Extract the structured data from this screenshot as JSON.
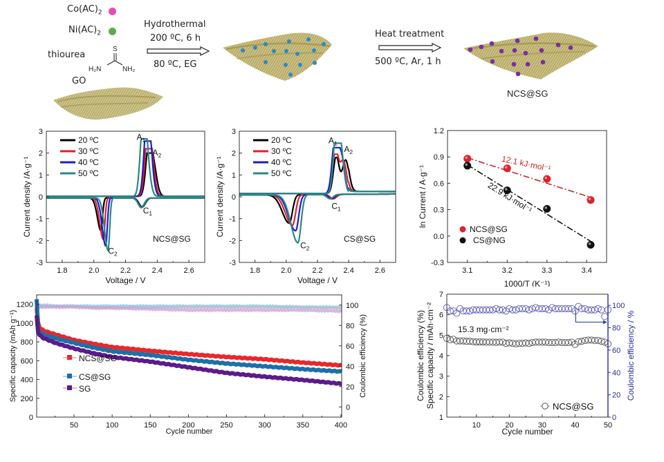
{
  "scheme": {
    "reagents": [
      {
        "label": "Co(AC)",
        "sub": "2",
        "dot_color": "#e84cb4"
      },
      {
        "label": "Ni(AC)",
        "sub": "2",
        "dot_color": "#5aae4a"
      }
    ],
    "thiourea_label": "thiourea",
    "thiourea_atoms": {
      "s": "S",
      "left": "H₂N",
      "right": "NH₂"
    },
    "go_label": "GO",
    "step1": {
      "above_1": "Hydrothermal",
      "above_2": "200 ºC, 6 h",
      "below": "80 ºC, EG"
    },
    "step2": {
      "above": "Heat treatment",
      "below": "500 ºC, Ar, 1 h"
    },
    "product_label": "NCS@SG",
    "sheet_color": "#a89a4a",
    "intermediate_dot_color": "#2e88c6",
    "product_dot_color": "#7a2fa3"
  },
  "chart_data": [
    {
      "id": "cv-ncs",
      "type": "line",
      "title": "",
      "annotation": "NCS@SG",
      "xlabel": "Voltage / V",
      "ylabel": "Current density /A·g⁻¹",
      "xlim": [
        1.7,
        2.7
      ],
      "ylim": [
        -3,
        3
      ],
      "xticks": [
        "1.8",
        "2.0",
        "2.2",
        "2.4",
        "2.6"
      ],
      "xtick_values": [
        1.8,
        2.0,
        2.2,
        2.4,
        2.6
      ],
      "yticks": [
        "-3",
        "-2",
        "-1",
        "0",
        "1",
        "2",
        "3"
      ],
      "ytick_values": [
        -3,
        -2,
        -1,
        0,
        1,
        2,
        3
      ],
      "peak_labels": [
        {
          "text": "A",
          "sub": "1",
          "x": 2.27,
          "y": 2.6
        },
        {
          "text": "A",
          "sub": "2",
          "x": 2.37,
          "y": 1.9
        },
        {
          "text": "C",
          "sub": "1",
          "x": 2.31,
          "y": -0.75
        },
        {
          "text": "C",
          "sub": "2",
          "x": 2.09,
          "y": -2.6
        }
      ],
      "series": [
        {
          "name": "20 ºC",
          "color": "#000000",
          "c2": [
            2.045,
            -1.5
          ],
          "c1": [
            2.305,
            -0.42
          ],
          "a1": [
            2.345,
            2.0
          ],
          "a2": [
            2.375,
            1.65
          ]
        },
        {
          "name": "30 ºC",
          "color": "#e0202a",
          "c2": [
            2.06,
            -1.9
          ],
          "c1": [
            2.3,
            -0.42
          ],
          "a1": [
            2.34,
            2.2
          ],
          "a2": [
            2.36,
            2.0
          ]
        },
        {
          "name": "40 ºC",
          "color": "#1a1ad0",
          "c2": [
            2.075,
            -2.2
          ],
          "c1": [
            2.3,
            -0.42
          ],
          "a1": [
            2.335,
            2.55
          ],
          "a2": [
            2.35,
            2.2
          ]
        },
        {
          "name": "50 ºC",
          "color": "#2a8a82",
          "c2": [
            2.09,
            -2.4
          ],
          "c1": [
            2.3,
            -0.45
          ],
          "a1": [
            2.31,
            2.65
          ],
          "a2": [
            2.33,
            2.2
          ]
        }
      ]
    },
    {
      "id": "cv-cs",
      "type": "line",
      "title": "",
      "annotation": "CS@SG",
      "xlabel": "Voltage / V",
      "ylabel": "Current density /A·g⁻¹",
      "xlim": [
        1.7,
        2.7
      ],
      "ylim": [
        -3,
        3
      ],
      "xticks": [
        "1.8",
        "2.0",
        "2.2",
        "2.4",
        "2.6"
      ],
      "xtick_values": [
        1.8,
        2.0,
        2.2,
        2.4,
        2.6
      ],
      "yticks": [
        "-3",
        "-2",
        "-1",
        "0",
        "1",
        "2",
        "3"
      ],
      "ytick_values": [
        -3,
        -2,
        -1,
        0,
        1,
        2,
        3
      ],
      "peak_labels": [
        {
          "text": "A",
          "sub": "1",
          "x": 2.27,
          "y": 2.45
        },
        {
          "text": "A",
          "sub": "2",
          "x": 2.37,
          "y": 2.05
        },
        {
          "text": "C",
          "sub": "1",
          "x": 2.29,
          "y": -0.55
        },
        {
          "text": "C",
          "sub": "2",
          "x": 2.09,
          "y": -2.35
        }
      ],
      "series": [
        {
          "name": "20 ºC",
          "color": "#000000",
          "c2": [
            2.02,
            -1.3
          ],
          "c1": [
            2.3,
            -0.2
          ],
          "a1": [
            2.32,
            1.7
          ],
          "a2": [
            2.38,
            1.8
          ]
        },
        {
          "name": "30 ºC",
          "color": "#e0202a",
          "c2": [
            2.04,
            -1.4
          ],
          "c1": [
            2.3,
            -0.2
          ],
          "a1": [
            2.315,
            1.95
          ],
          "a2": [
            2.365,
            1.75
          ]
        },
        {
          "name": "40 ºC",
          "color": "#1a1ad0",
          "c2": [
            2.06,
            -1.65
          ],
          "c1": [
            2.29,
            -0.2
          ],
          "a1": [
            2.31,
            2.25
          ],
          "a2": [
            2.35,
            2.1
          ]
        },
        {
          "name": "50 ºC",
          "color": "#2a8a82",
          "c2": [
            2.075,
            -2.2
          ],
          "c1": [
            2.28,
            -0.2
          ],
          "a1": [
            2.32,
            2.45
          ],
          "a2": [
            2.345,
            2.35
          ]
        }
      ]
    },
    {
      "id": "arrhenius",
      "type": "scatter",
      "title": "",
      "xlabel": "1000/T (K⁻¹)",
      "ylabel": "ln Current / A·g⁻¹",
      "xlim": [
        3.05,
        3.45
      ],
      "ylim": [
        -0.3,
        1.2
      ],
      "xticks": [
        "3.1",
        "3.2",
        "3.3",
        "3.4"
      ],
      "xtick_values": [
        3.1,
        3.2,
        3.3,
        3.4
      ],
      "yticks": [
        "-0.3",
        "0.0",
        "0.3",
        "0.6",
        "0.9",
        "1.2"
      ],
      "ytick_values": [
        -0.3,
        0.0,
        0.3,
        0.6,
        0.9,
        1.2
      ],
      "legend_position": "bottom-left",
      "series": [
        {
          "name": "NCS@SG",
          "color": "#e0202a",
          "x": [
            3.1,
            3.2,
            3.3,
            3.41
          ],
          "y": [
            0.88,
            0.77,
            0.65,
            0.41
          ],
          "fit": [
            [
              3.1,
              0.89
            ],
            [
              3.41,
              0.44
            ]
          ],
          "annotation": "12.1 kJ·mol⁻¹"
        },
        {
          "name": "CS@NG",
          "color": "#111111",
          "x": [
            3.1,
            3.2,
            3.3,
            3.41
          ],
          "y": [
            0.8,
            0.52,
            0.31,
            -0.1
          ],
          "fit": [
            [
              3.1,
              0.81
            ],
            [
              3.41,
              -0.06
            ]
          ],
          "annotation": "22.9 kJ·mol⁻¹"
        }
      ]
    },
    {
      "id": "long-cycling",
      "type": "line",
      "title": "",
      "xlabel": "Cycle number",
      "ylabel": "Specific capacity (mAh g⁻¹)",
      "ylabel_right": "Coulombic efficiency (%)",
      "xlim": [
        1,
        401
      ],
      "ylim": [
        0,
        1300
      ],
      "ylim_right": [
        -10,
        110
      ],
      "xticks": [
        "50",
        "100",
        "150",
        "200",
        "250",
        "300",
        "350",
        "400"
      ],
      "xtick_values": [
        50,
        100,
        150,
        200,
        250,
        300,
        350,
        400
      ],
      "yticks": [
        "0",
        "200",
        "400",
        "600",
        "800",
        "1000",
        "1200"
      ],
      "ytick_values": [
        0,
        200,
        400,
        600,
        800,
        1000,
        1200
      ],
      "yticks_right": [
        "0",
        "20",
        "40",
        "60",
        "80",
        "100"
      ],
      "ytick_values_right": [
        0,
        20,
        40,
        60,
        80,
        100
      ],
      "legend_position": "center-left",
      "series": [
        {
          "name": "NCS@SG",
          "color": "#e8282a",
          "ce_color": "#f4a3a6",
          "x": [
            1,
            3,
            5,
            10,
            25,
            50,
            75,
            100,
            150,
            200,
            250,
            300,
            350,
            400
          ],
          "y": [
            1150,
            1000,
            950,
            920,
            880,
            820,
            780,
            745,
            705,
            670,
            640,
            615,
            580,
            550
          ],
          "ce": [
            100,
            99,
            99,
            99,
            99,
            99,
            98,
            98,
            98,
            98,
            98,
            98,
            98,
            97
          ]
        },
        {
          "name": "CS@SG",
          "color": "#1e6fa8",
          "ce_color": "#8ccbe6",
          "x": [
            1,
            3,
            5,
            10,
            25,
            50,
            75,
            100,
            150,
            200,
            250,
            300,
            350,
            400
          ],
          "y": [
            1250,
            930,
            900,
            880,
            840,
            790,
            740,
            700,
            660,
            610,
            570,
            540,
            510,
            485
          ],
          "ce": [
            105,
            100,
            100,
            100,
            99,
            99,
            99,
            99,
            99,
            99,
            99,
            99,
            98,
            98
          ]
        },
        {
          "name": "SG",
          "color": "#5c1a8a",
          "ce_color": "#c99fd8",
          "x": [
            1,
            3,
            5,
            10,
            25,
            50,
            75,
            100,
            150,
            200,
            250,
            300,
            350,
            400
          ],
          "y": [
            1080,
            900,
            870,
            840,
            790,
            730,
            680,
            640,
            590,
            530,
            470,
            430,
            395,
            355
          ],
          "ce": [
            98,
            98,
            98,
            98,
            98,
            98,
            97,
            97,
            96,
            95,
            95,
            95,
            95,
            94
          ]
        }
      ]
    },
    {
      "id": "high-loading",
      "type": "scatter",
      "title": "",
      "xlabel": "Cycle number",
      "ylabel": "Specific capacity / mAh·cm⁻²",
      "ylabel_extra": "Coulombic efficiency (%)",
      "ylabel_right": "Coulombic efficiency / %",
      "xlim": [
        1,
        50
      ],
      "ylim": [
        1,
        7
      ],
      "ylim_right": [
        0,
        110
      ],
      "xticks": [
        "10",
        "20",
        "30",
        "40",
        "50"
      ],
      "xtick_values": [
        10,
        20,
        30,
        40,
        50
      ],
      "yticks": [
        "1",
        "2",
        "3",
        "4",
        "5",
        "6",
        "7"
      ],
      "ytick_values": [
        1,
        2,
        3,
        4,
        5,
        6,
        7
      ],
      "yticks_right": [
        "0",
        "20",
        "40",
        "60",
        "80",
        "100"
      ],
      "ytick_values_right": [
        0,
        20,
        40,
        60,
        80,
        100
      ],
      "annotation": "15.3 mg·cm⁻²",
      "legend": "NCS@SG",
      "legend_position": "bottom-right",
      "right_axis_color": "#2a2aa0",
      "series": [
        {
          "name": "capacity",
          "color": "#333333",
          "x": [
            1,
            2,
            3,
            4,
            5,
            6,
            7,
            8,
            9,
            10,
            11,
            12,
            13,
            14,
            15,
            16,
            17,
            18,
            19,
            20,
            21,
            22,
            23,
            24,
            25,
            26,
            27,
            28,
            29,
            30,
            31,
            32,
            33,
            34,
            35,
            36,
            37,
            38,
            39,
            40,
            41,
            42,
            43,
            44,
            45,
            46,
            47,
            48,
            49,
            50
          ],
          "y": [
            4.85,
            4.78,
            4.8,
            4.72,
            4.72,
            4.72,
            4.7,
            4.7,
            4.68,
            4.67,
            4.67,
            4.67,
            4.66,
            4.66,
            4.66,
            4.65,
            4.66,
            4.66,
            4.6,
            4.62,
            4.6,
            4.58,
            4.6,
            4.6,
            4.62,
            4.6,
            4.64,
            4.66,
            4.66,
            4.66,
            4.66,
            4.64,
            4.64,
            4.64,
            4.66,
            4.64,
            4.64,
            4.64,
            4.66,
            4.55,
            4.68,
            4.7,
            4.74,
            4.76,
            4.76,
            4.74,
            4.74,
            4.7,
            4.66,
            4.58
          ]
        },
        {
          "name": "coulombic efficiency",
          "color": "#4a4ab0",
          "x": [
            1,
            2,
            3,
            4,
            5,
            6,
            7,
            8,
            9,
            10,
            11,
            12,
            13,
            14,
            15,
            16,
            17,
            18,
            19,
            20,
            21,
            22,
            23,
            24,
            25,
            26,
            27,
            28,
            29,
            30,
            31,
            32,
            33,
            34,
            35,
            36,
            37,
            38,
            39,
            40,
            41,
            42,
            43,
            44,
            45,
            46,
            47,
            48,
            49,
            50
          ],
          "y": [
            98,
            95,
            95,
            93,
            97,
            95,
            95,
            95,
            96,
            96,
            96,
            96,
            96,
            96,
            96,
            97,
            96,
            96,
            95,
            97,
            96,
            96,
            97,
            97,
            97,
            96,
            97,
            98,
            97,
            97,
            97,
            96,
            98,
            97,
            97,
            97,
            97,
            97,
            97,
            95,
            99,
            97,
            97,
            96,
            96,
            96,
            97,
            96,
            90,
            96
          ]
        }
      ]
    }
  ]
}
